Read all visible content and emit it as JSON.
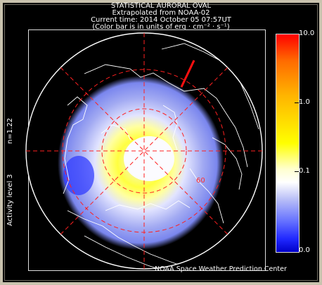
{
  "header": {
    "line1": "STATISTICAL AURORAL OVAL",
    "line2": "Extrapolated from NOAA-02",
    "line3": "Current time: 2014 October 05 07:57UT",
    "line4": "(Color bar is in units of erg · cm⁻² · s⁻¹)"
  },
  "side_labels": {
    "n_value": "n=1.22",
    "activity": "Activity level 3"
  },
  "map": {
    "latitude_label": "60",
    "grid_color": "#ff2020",
    "coast_color": "#ffffff",
    "oval_colors": [
      "#ffff00",
      "#ffffff",
      "#b7bdf7",
      "#2028ff"
    ]
  },
  "colorbar": {
    "ticks": [
      "10.0",
      "1.0",
      "0.1",
      "0.0"
    ]
  },
  "credit": "NOAA Space Weather Prediction Center"
}
